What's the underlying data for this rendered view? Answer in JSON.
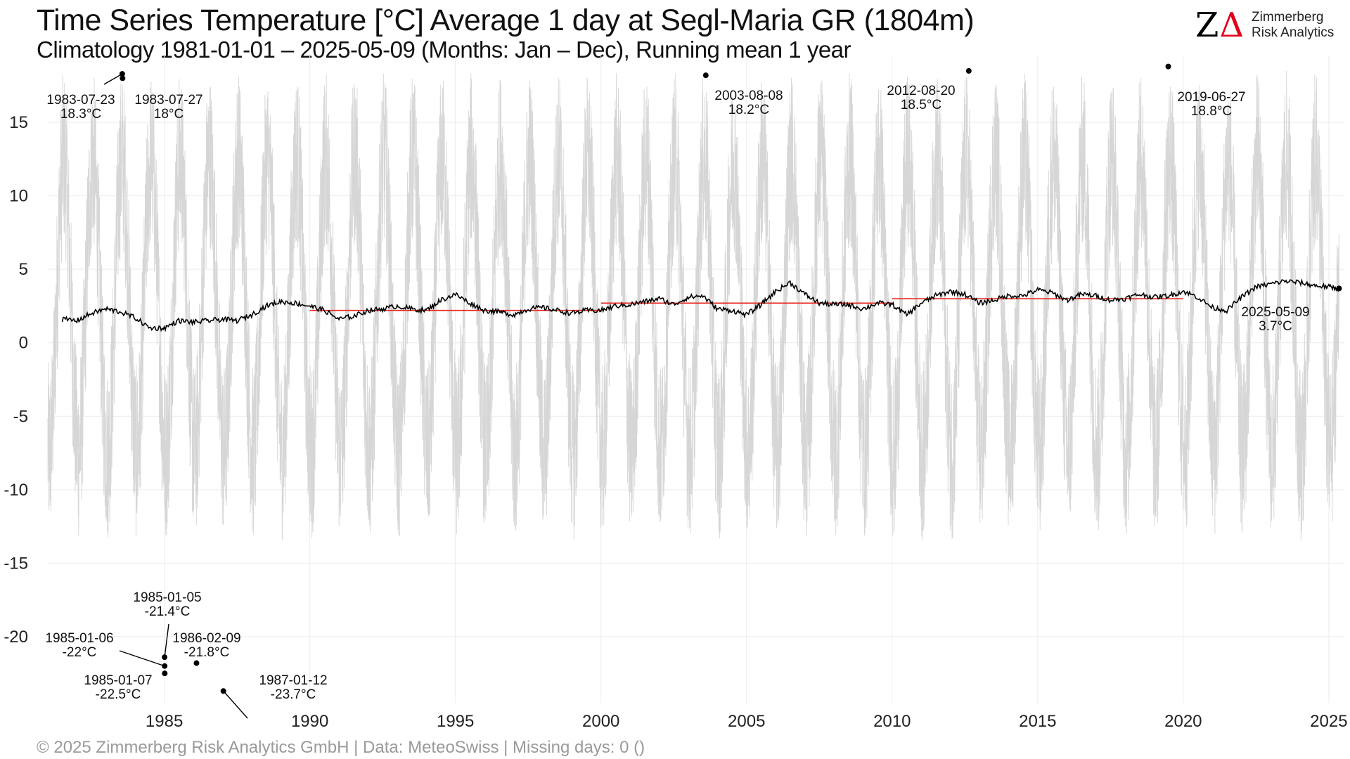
{
  "header": {
    "title": "Time Series Temperature [°C] Average 1 day at Segl-Maria  GR (1804m)",
    "subtitle": "Climatology 1981-01-01 – 2025-05-09 (Months: Jan – Dec), Running mean 1 year"
  },
  "logo": {
    "mark_z": "Z",
    "mark_delta": "Δ",
    "name_line1": "Zimmerberg",
    "name_line2": "Risk Analytics"
  },
  "footer": {
    "text": "©  2025 Zimmerberg Risk Analytics GmbH | Data: MeteoSwiss | Missing days: 0 ()"
  },
  "colors": {
    "daily": "#d6d6d6",
    "running_mean": "#000000",
    "decade_mean": "#e8231a",
    "grid": "#ececec",
    "brand_red": "#e0001a"
  },
  "chart_data": {
    "type": "line",
    "x_type": "date",
    "xlim": [
      "1981-01-01",
      "2025-07-15"
    ],
    "ylim": [
      -24.5,
      19.5
    ],
    "x_ticks": [
      "1985",
      "1990",
      "1995",
      "2000",
      "2005",
      "2010",
      "2015",
      "2020",
      "2025"
    ],
    "y_ticks": [
      -20,
      -15,
      -10,
      -5,
      0,
      5,
      10,
      15
    ],
    "grid": true,
    "series": [
      {
        "role": "daily",
        "style": "thin light grey line",
        "approximation": "seasonal cycle",
        "annual_mean": 2.5,
        "annual_amplitude": 10,
        "daily_min_range": [
          -24,
          -12
        ],
        "daily_max_range": [
          12,
          18.8
        ]
      },
      {
        "role": "running_mean",
        "x": [
          "1981-07-01",
          "1982-01-01",
          "1982-07-01",
          "1983-01-01",
          "1983-07-01",
          "1984-01-01",
          "1984-07-01",
          "1985-01-01",
          "1985-07-01",
          "1986-01-01",
          "1986-07-01",
          "1987-01-01",
          "1987-07-01",
          "1988-01-01",
          "1988-07-01",
          "1989-01-01",
          "1989-07-01",
          "1990-01-01",
          "1990-07-01",
          "1991-01-01",
          "1991-07-01",
          "1992-01-01",
          "1992-07-01",
          "1993-01-01",
          "1993-07-01",
          "1994-01-01",
          "1994-07-01",
          "1995-01-01",
          "1995-07-01",
          "1996-01-01",
          "1996-07-01",
          "1997-01-01",
          "1997-07-01",
          "1998-01-01",
          "1998-07-01",
          "1999-01-01",
          "1999-07-01",
          "2000-01-01",
          "2000-07-01",
          "2001-01-01",
          "2001-07-01",
          "2002-01-01",
          "2002-07-01",
          "2003-01-01",
          "2003-07-01",
          "2004-01-01",
          "2004-07-01",
          "2005-01-01",
          "2005-07-01",
          "2006-01-01",
          "2006-07-01",
          "2007-01-01",
          "2007-07-01",
          "2008-01-01",
          "2008-07-01",
          "2009-01-01",
          "2009-07-01",
          "2010-01-01",
          "2010-07-01",
          "2011-01-01",
          "2011-07-01",
          "2012-01-01",
          "2012-07-01",
          "2013-01-01",
          "2013-07-01",
          "2014-01-01",
          "2014-07-01",
          "2015-01-01",
          "2015-07-01",
          "2016-01-01",
          "2016-07-01",
          "2017-01-01",
          "2017-07-01",
          "2018-01-01",
          "2018-07-01",
          "2019-01-01",
          "2019-07-01",
          "2020-01-01",
          "2020-07-01",
          "2021-01-01",
          "2021-07-01",
          "2022-01-01",
          "2022-07-01",
          "2023-01-01",
          "2023-07-01",
          "2024-01-01",
          "2024-07-01",
          "2025-01-01",
          "2025-05-09"
        ],
        "y": [
          1.6,
          1.5,
          2.0,
          2.3,
          2.1,
          1.7,
          1.0,
          1.0,
          1.5,
          1.4,
          1.5,
          1.6,
          1.5,
          1.9,
          2.5,
          2.8,
          2.7,
          2.5,
          2.2,
          1.6,
          1.8,
          2.2,
          2.3,
          2.5,
          2.3,
          2.2,
          2.9,
          3.3,
          2.7,
          2.2,
          2.1,
          1.9,
          2.3,
          2.4,
          2.2,
          2.0,
          2.2,
          2.2,
          2.5,
          2.6,
          2.8,
          3.0,
          2.6,
          3.1,
          3.2,
          2.3,
          2.2,
          1.9,
          2.6,
          3.5,
          4.1,
          3.3,
          2.7,
          2.6,
          2.6,
          2.3,
          2.7,
          2.6,
          1.9,
          2.7,
          3.2,
          3.5,
          3.3,
          2.7,
          2.9,
          3.2,
          3.2,
          3.6,
          3.4,
          2.9,
          3.3,
          3.2,
          2.9,
          3.0,
          3.3,
          3.1,
          3.2,
          3.5,
          3.1,
          2.4,
          2.2,
          3.1,
          3.8,
          4.0,
          4.2,
          4.1,
          3.9,
          3.8,
          3.7
        ]
      },
      {
        "role": "decade_mean",
        "segments": [
          {
            "from": "1990-01-01",
            "to": "1999-12-31",
            "value": 2.2
          },
          {
            "from": "2000-01-01",
            "to": "2009-12-31",
            "value": 2.7
          },
          {
            "from": "2010-01-01",
            "to": "2019-12-31",
            "value": 3.0
          }
        ]
      }
    ],
    "annotations": [
      {
        "date": "1983-07-23",
        "value": 18.3,
        "line1": "1983-07-23",
        "line2": "18.3°C"
      },
      {
        "date": "1983-07-27",
        "value": 18.0,
        "line1": "1983-07-27",
        "line2": "18°C"
      },
      {
        "date": "2003-08-08",
        "value": 18.2,
        "line1": "2003-08-08",
        "line2": "18.2°C"
      },
      {
        "date": "2012-08-20",
        "value": 18.5,
        "line1": "2012-08-20",
        "line2": "18.5°C"
      },
      {
        "date": "2019-06-27",
        "value": 18.8,
        "line1": "2019-06-27",
        "line2": "18.8°C"
      },
      {
        "date": "2025-05-09",
        "value": 3.7,
        "line1": "2025-05-09",
        "line2": "3.7°C"
      },
      {
        "date": "1985-01-05",
        "value": -21.4,
        "line1": "1985-01-05",
        "line2": "-21.4°C"
      },
      {
        "date": "1985-01-06",
        "value": -22.0,
        "line1": "1985-01-06",
        "line2": "-22°C"
      },
      {
        "date": "1985-01-07",
        "value": -22.5,
        "line1": "1985-01-07",
        "line2": "-22.5°C"
      },
      {
        "date": "1986-02-09",
        "value": -21.8,
        "line1": "1986-02-09",
        "line2": "-21.8°C"
      },
      {
        "date": "1987-01-12",
        "value": -23.7,
        "line1": "1987-01-12",
        "line2": "-23.7°C"
      }
    ]
  }
}
